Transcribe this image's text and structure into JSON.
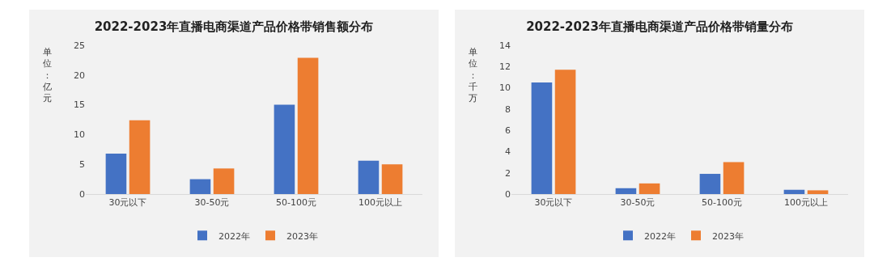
{
  "chart_data": [
    {
      "type": "bar",
      "title": "2022-2023年直播电商渠道产品价格带销售额分布",
      "ylabel": "单位：亿元",
      "categories": [
        "30元以下",
        "30-50元",
        "50-100元",
        "100元以上"
      ],
      "series": [
        {
          "name": "2022年",
          "color": "#4472c4",
          "values": [
            6.8,
            2.5,
            15.0,
            5.6
          ]
        },
        {
          "name": "2023年",
          "color": "#ed7d31",
          "values": [
            12.4,
            4.3,
            22.9,
            5.0
          ]
        }
      ],
      "ylim": [
        0,
        25
      ],
      "yticks": [
        0,
        5,
        10,
        15,
        20,
        25
      ],
      "grid": false,
      "legend": "bottom"
    },
    {
      "type": "bar",
      "title": "2022-2023年直播电商渠道产品价格带销量分布",
      "ylabel": "单位：千万",
      "categories": [
        "30元以下",
        "30-50元",
        "50-100元",
        "100元以上"
      ],
      "series": [
        {
          "name": "2022年",
          "color": "#4472c4",
          "values": [
            10.5,
            0.55,
            1.9,
            0.4
          ]
        },
        {
          "name": "2023年",
          "color": "#ed7d31",
          "values": [
            11.7,
            1.0,
            3.0,
            0.35
          ]
        }
      ],
      "ylim": [
        0,
        14
      ],
      "yticks": [
        0,
        2,
        4,
        6,
        8,
        10,
        12,
        14
      ],
      "grid": false,
      "legend": "bottom"
    }
  ]
}
